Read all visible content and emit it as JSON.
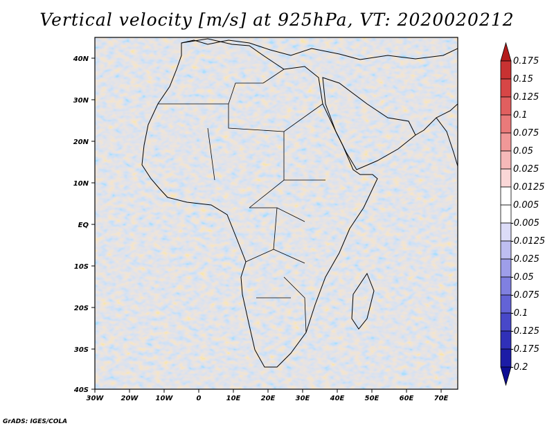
{
  "title": "Vertical velocity [m/s] at 925hPa, VT: 2020020212",
  "credit": "GrADS: IGES/COLA",
  "map": {
    "region": "Africa",
    "lon_range": [
      -30,
      75
    ],
    "lat_range": [
      -40,
      45
    ],
    "lat_ticks": [
      "40N",
      "30N",
      "20N",
      "10N",
      "EQ",
      "10S",
      "20S",
      "30S",
      "40S"
    ],
    "lon_ticks": [
      "30W",
      "20W",
      "10W",
      "0",
      "10E",
      "20E",
      "30E",
      "40E",
      "50E",
      "60E",
      "70E"
    ]
  },
  "colorbar": {
    "labels": [
      "0.175",
      "0.15",
      "0.125",
      "0.1",
      "0.075",
      "0.05",
      "0.025",
      "0.0125",
      "0.005",
      "-0.005",
      "-0.0125",
      "-0.025",
      "-0.05",
      "-0.075",
      "-0.1",
      "-0.125",
      "-0.175",
      "-0.2"
    ],
    "colors": [
      "#b41c1c",
      "#c83232",
      "#d74646",
      "#e15f5f",
      "#e97a7a",
      "#f09898",
      "#f6b9b9",
      "#fad7d7",
      "#ffffff",
      "#ffffff",
      "#dcdcf8",
      "#bebef1",
      "#9e9ee9",
      "#8080e0",
      "#6363d6",
      "#4848c8",
      "#3030b8",
      "#1c1ca6",
      "#0e0e94"
    ]
  },
  "colors": {
    "positive": "#e05050",
    "negative": "#5050e0",
    "coast": "#000000"
  }
}
